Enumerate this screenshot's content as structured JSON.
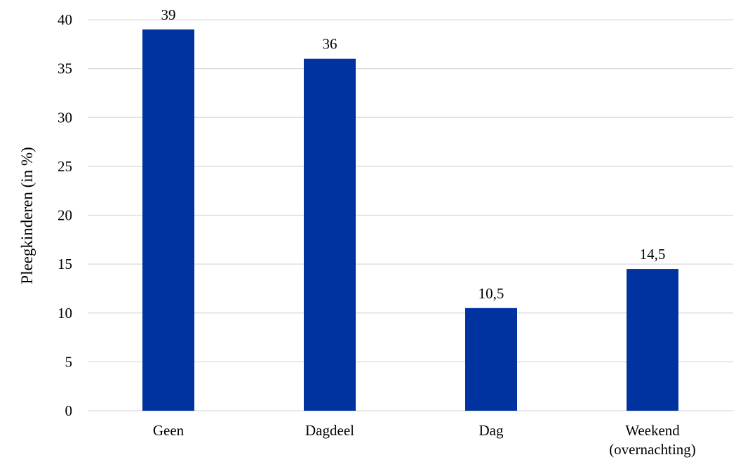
{
  "chart_data": {
    "type": "bar",
    "categories": [
      [
        "Geen"
      ],
      [
        "Dagdeel"
      ],
      [
        "Dag"
      ],
      [
        "Weekend",
        "(overnachting)"
      ]
    ],
    "values": [
      39,
      36,
      10.5,
      14.5
    ],
    "data_labels": [
      "39",
      "36",
      "10,5",
      "14,5"
    ],
    "ylabel": "Pleegkinderen (in %)",
    "xlabel": "",
    "title": "",
    "ylim": [
      0,
      40
    ],
    "yticks": [
      "0",
      "5",
      "10",
      "15",
      "20",
      "25",
      "30",
      "35",
      "40"
    ],
    "bar_color": "#0033A0",
    "gridline_color": "#D9D9D9",
    "grid": true
  }
}
